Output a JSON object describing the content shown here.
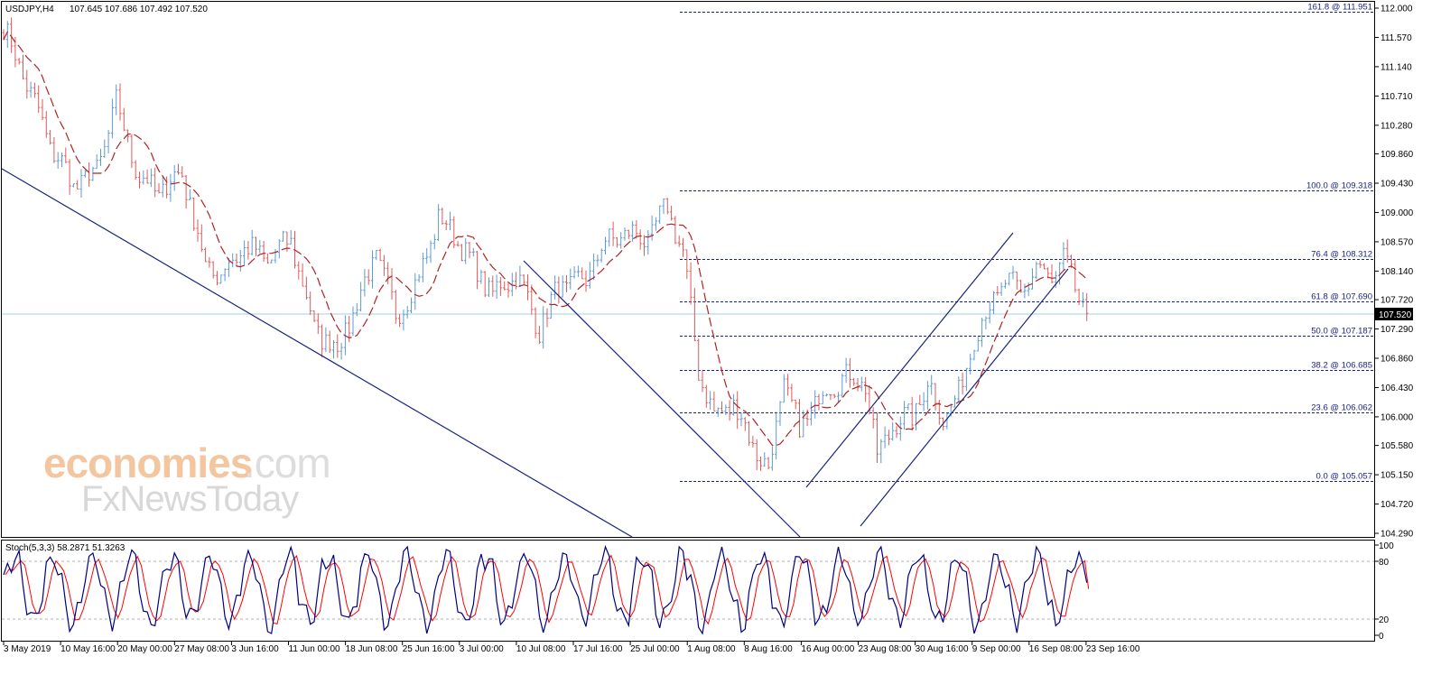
{
  "header": {
    "symbol": "USDJPY,H4",
    "ohlc": "107.645 107.686 107.492 107.520"
  },
  "indicator": {
    "label": "Stoch(5,3,3) 58.2871 51.3263",
    "levels": [
      "100",
      "80",
      "20",
      "0"
    ]
  },
  "watermark": {
    "line1a": "economies",
    "line1b": ".com",
    "line2": "FxNewsToday"
  },
  "colors": {
    "bull": "#5b9bd5",
    "bear": "#e05a5a",
    "ma": "#b22222",
    "trend": "#1a237e",
    "fib": "#1a237e",
    "price_line": "#9fd3e8",
    "stoch_main": "#000080",
    "stoch_signal": "#ff0000"
  },
  "chart_data": {
    "type": "candlestick",
    "symbol": "USDJPY",
    "timeframe": "H4",
    "current_price": "107.520",
    "y_ticks": [
      "112.000",
      "111.570",
      "111.140",
      "110.710",
      "110.280",
      "109.860",
      "109.430",
      "109.000",
      "108.570",
      "108.140",
      "107.720",
      "107.290",
      "106.860",
      "106.430",
      "106.000",
      "105.580",
      "105.150",
      "104.720",
      "104.290"
    ],
    "ylim": [
      104.29,
      112.0
    ],
    "x_labels": [
      "3 May 2019",
      "10 May 16:00",
      "20 May 00:00",
      "27 May 08:00",
      "3 Jun 16:00",
      "11 Jun 00:00",
      "18 Jun 08:00",
      "25 Jun 16:00",
      "3 Jul 00:00",
      "10 Jul 08:00",
      "17 Jul 16:00",
      "25 Jul 00:00",
      "1 Aug 08:00",
      "8 Aug 16:00",
      "16 Aug 00:00",
      "23 Aug 08:00",
      "30 Aug 16:00",
      "9 Sep 00:00",
      "16 Sep 08:00",
      "23 Sep 16:00"
    ],
    "fibonacci": [
      {
        "label": "161.8 @ 111.951",
        "value": 111.951
      },
      {
        "label": "100.0 @ 109.318",
        "value": 109.318
      },
      {
        "label": "76.4 @ 108.312",
        "value": 108.312
      },
      {
        "label": "61.8 @ 107.690",
        "value": 107.69
      },
      {
        "label": "50.0 @ 107.187",
        "value": 107.187
      },
      {
        "label": "38.2 @ 106.685",
        "value": 106.685
      },
      {
        "label": "23.6 @ 106.062",
        "value": 106.062
      },
      {
        "label": "0.0 @ 105.057",
        "value": 105.057
      }
    ],
    "anchors": [
      {
        "i": 0,
        "p": 111.7
      },
      {
        "i": 6,
        "p": 110.9
      },
      {
        "i": 12,
        "p": 110.0
      },
      {
        "i": 18,
        "p": 109.4
      },
      {
        "i": 24,
        "p": 109.6
      },
      {
        "i": 29,
        "p": 110.6
      },
      {
        "i": 35,
        "p": 109.5
      },
      {
        "i": 40,
        "p": 109.3
      },
      {
        "i": 46,
        "p": 109.6
      },
      {
        "i": 52,
        "p": 108.2
      },
      {
        "i": 56,
        "p": 108.1
      },
      {
        "i": 62,
        "p": 108.5
      },
      {
        "i": 68,
        "p": 108.3
      },
      {
        "i": 74,
        "p": 108.6
      },
      {
        "i": 80,
        "p": 107.3
      },
      {
        "i": 86,
        "p": 107.0
      },
      {
        "i": 92,
        "p": 107.8
      },
      {
        "i": 96,
        "p": 108.4
      },
      {
        "i": 101,
        "p": 107.5
      },
      {
        "i": 106,
        "p": 107.9
      },
      {
        "i": 112,
        "p": 108.9
      },
      {
        "i": 116,
        "p": 108.7
      },
      {
        "i": 120,
        "p": 108.3
      },
      {
        "i": 126,
        "p": 107.8
      },
      {
        "i": 132,
        "p": 108.1
      },
      {
        "i": 138,
        "p": 107.3
      },
      {
        "i": 143,
        "p": 107.9
      },
      {
        "i": 150,
        "p": 108.0
      },
      {
        "i": 154,
        "p": 108.5
      },
      {
        "i": 160,
        "p": 108.7
      },
      {
        "i": 166,
        "p": 108.6
      },
      {
        "i": 171,
        "p": 109.1
      },
      {
        "i": 175,
        "p": 108.4
      },
      {
        "i": 179,
        "p": 106.7
      },
      {
        "i": 183,
        "p": 106.0
      },
      {
        "i": 188,
        "p": 106.2
      },
      {
        "i": 193,
        "p": 105.6
      },
      {
        "i": 197,
        "p": 105.2
      },
      {
        "i": 201,
        "p": 106.5
      },
      {
        "i": 205,
        "p": 105.8
      },
      {
        "i": 210,
        "p": 106.3
      },
      {
        "i": 216,
        "p": 106.6
      },
      {
        "i": 222,
        "p": 106.5
      },
      {
        "i": 225,
        "p": 105.4
      },
      {
        "i": 229,
        "p": 105.9
      },
      {
        "i": 234,
        "p": 106.0
      },
      {
        "i": 238,
        "p": 106.5
      },
      {
        "i": 242,
        "p": 106.0
      },
      {
        "i": 246,
        "p": 106.3
      },
      {
        "i": 250,
        "p": 107.2
      },
      {
        "i": 254,
        "p": 107.6
      },
      {
        "i": 258,
        "p": 108.0
      },
      {
        "i": 262,
        "p": 107.8
      },
      {
        "i": 266,
        "p": 108.2
      },
      {
        "i": 270,
        "p": 108.0
      },
      {
        "i": 273,
        "p": 108.3
      },
      {
        "i": 276,
        "p": 107.9
      },
      {
        "i": 279,
        "p": 107.52
      }
    ],
    "stoch_last": {
      "k": 58.2871,
      "d": 51.3263
    }
  }
}
